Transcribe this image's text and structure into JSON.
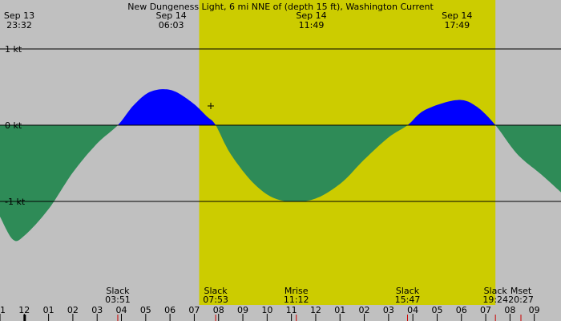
{
  "chart_data": {
    "type": "area",
    "title": "New Dungeness Light, 6 mi NNE of (depth 15 ft), Washington Current",
    "y_unit": "kt",
    "ylim": [
      -1.5,
      1.5
    ],
    "y_ticks": [
      {
        "value": 1,
        "label": "1 kt"
      },
      {
        "value": 0,
        "label": "0 kt"
      },
      {
        "value": -1,
        "label": "-1 kt"
      }
    ],
    "x_range_hours": [
      -1.0,
      22.1
    ],
    "daylight": {
      "start_hour": 7.2,
      "end_hour": 19.4,
      "color": "#cccc00"
    },
    "colors": {
      "background": "#c0c0c0",
      "flood": "#0000ff",
      "ebb": "#2e8b57"
    },
    "top_labels": [
      {
        "date": "Sep 13",
        "time": "23:32",
        "hour": -0.47
      },
      {
        "date": "Sep 14",
        "time": "06:03",
        "hour": 6.05
      },
      {
        "date": "Sep 14",
        "time": "11:49",
        "hour": 11.82
      },
      {
        "date": "Sep 14",
        "time": "17:49",
        "hour": 17.82
      }
    ],
    "series": [
      {
        "x": [
          -1,
          -0.47,
          0,
          1,
          2,
          3,
          3.85,
          4.5,
          5.2,
          6.05,
          6.9,
          7.5,
          7.88,
          8.5,
          9.5,
          10.5,
          11.82,
          13,
          14,
          15,
          15.78,
          16.5,
          17.82,
          18.6,
          19.4,
          20.3,
          21.3,
          22.1
        ],
        "y": [
          -1.2,
          -1.5,
          -1.45,
          -1.1,
          -0.62,
          -0.24,
          0,
          0.26,
          0.44,
          0.46,
          0.3,
          0.12,
          0,
          -0.38,
          -0.78,
          -0.98,
          -0.98,
          -0.77,
          -0.45,
          -0.16,
          0,
          0.2,
          0.33,
          0.25,
          0,
          -0.38,
          -0.65,
          -0.88
        ]
      }
    ],
    "events": [
      {
        "label": "Slack",
        "time": "03:51",
        "hour": 3.85
      },
      {
        "label": "Slack",
        "time": "07:53",
        "hour": 7.88
      },
      {
        "label": "Mrise",
        "time": "11:12",
        "hour": 11.2
      },
      {
        "label": "Slack",
        "time": "15:47",
        "hour": 15.78
      },
      {
        "label": "Slack",
        "time": "19:24",
        "hour": 19.4
      },
      {
        "label": "Mset",
        "time": "20:27",
        "hour": 20.45
      }
    ],
    "x_tick_labels": [
      {
        "label": "11",
        "hour": -1
      },
      {
        "label": "12",
        "hour": 0
      },
      {
        "label": "01",
        "hour": 1
      },
      {
        "label": "02",
        "hour": 2
      },
      {
        "label": "03",
        "hour": 3
      },
      {
        "label": "04",
        "hour": 4
      },
      {
        "label": "05",
        "hour": 5
      },
      {
        "label": "06",
        "hour": 6
      },
      {
        "label": "07",
        "hour": 7
      },
      {
        "label": "08",
        "hour": 8
      },
      {
        "label": "09",
        "hour": 9
      },
      {
        "label": "10",
        "hour": 10
      },
      {
        "label": "11",
        "hour": 11
      },
      {
        "label": "12",
        "hour": 12
      },
      {
        "label": "01",
        "hour": 13
      },
      {
        "label": "02",
        "hour": 14
      },
      {
        "label": "03",
        "hour": 15
      },
      {
        "label": "04",
        "hour": 16
      },
      {
        "label": "05",
        "hour": 17
      },
      {
        "label": "06",
        "hour": 18
      },
      {
        "label": "07",
        "hour": 19
      },
      {
        "label": "08",
        "hour": 20
      },
      {
        "label": "09",
        "hour": 21
      }
    ],
    "grid": true
  }
}
